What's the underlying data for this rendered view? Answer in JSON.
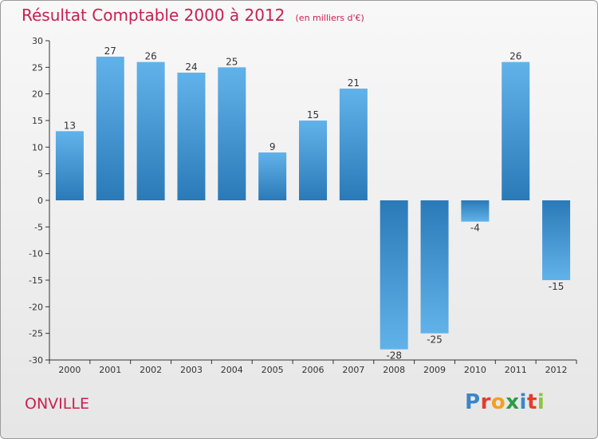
{
  "header": {
    "title": "Résultat Comptable 2000 à 2012",
    "subtitle": "(en milliers d'€)"
  },
  "commune": "ONVILLE",
  "logo": {
    "letters": [
      {
        "char": "P",
        "color": "#3a86c8"
      },
      {
        "char": "r",
        "color": "#e23c2c"
      },
      {
        "char": "o",
        "color": "#f2a01e"
      },
      {
        "char": "x",
        "color": "#2e9b47"
      },
      {
        "char": "i",
        "color": "#3a86c8"
      },
      {
        "char": "t",
        "color": "#e23c2c"
      },
      {
        "char": "i",
        "color": "#8bc540"
      }
    ]
  },
  "colors": {
    "bar_dark": "#2a7ab8",
    "bar_light": "#62b2ea",
    "accent": "#c8204f"
  },
  "chart_data": {
    "type": "bar",
    "title": "Résultat Comptable 2000 à 2012",
    "ylabel": "en milliers d'€",
    "xlabel": "",
    "categories": [
      "2000",
      "2001",
      "2002",
      "2003",
      "2004",
      "2005",
      "2006",
      "2007",
      "2008",
      "2009",
      "2010",
      "2011",
      "2012"
    ],
    "values": [
      13,
      27,
      26,
      24,
      25,
      9,
      15,
      21,
      -28,
      -25,
      -4,
      26,
      -15
    ],
    "value_labels": [
      "13",
      "27",
      "26",
      "24",
      "25",
      "9",
      "15",
      "21",
      "-28",
      "-25",
      "-4",
      "26",
      "-15"
    ],
    "ylim": [
      -30,
      30
    ],
    "yticks": [
      30,
      25,
      20,
      15,
      10,
      5,
      0,
      -5,
      -10,
      -15,
      -20,
      -25,
      -30
    ],
    "ytick_labels": [
      "30",
      "25",
      "20",
      "15",
      "10",
      "5",
      "0",
      "-5",
      "-10",
      "-15",
      "-20",
      "-25",
      "-30"
    ],
    "grid": false,
    "legend": "none"
  }
}
